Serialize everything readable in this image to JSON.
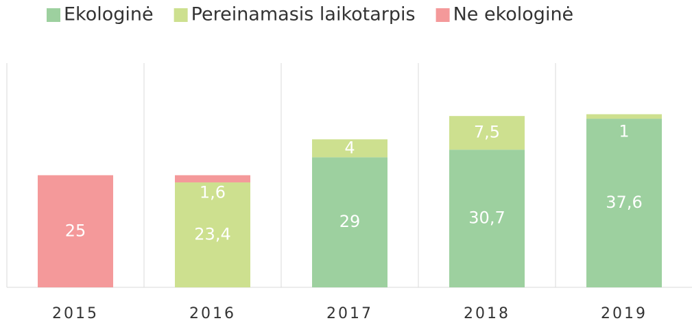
{
  "chart_data": {
    "type": "stacked_bar",
    "categories": [
      "2015",
      "2016",
      "2017",
      "2018",
      "2019"
    ],
    "series": [
      {
        "name": "Ekologinė",
        "color": "#9dd09f",
        "values": [
          null,
          null,
          29,
          30.7,
          37.6
        ],
        "value_labels": [
          null,
          null,
          "29",
          "30,7",
          "37,6"
        ]
      },
      {
        "name": "Pereinamasis laikotarpis",
        "color": "#cde08f",
        "values": [
          null,
          23.4,
          4,
          7.5,
          1
        ],
        "value_labels": [
          null,
          "23,4",
          "4",
          "7,5",
          "1"
        ]
      },
      {
        "name": "Ne ekologinė",
        "color": "#f4999a",
        "values": [
          25,
          1.6,
          null,
          null,
          null
        ],
        "value_labels": [
          "25",
          "1,6",
          null,
          null,
          null
        ]
      }
    ],
    "ylim": [
      0,
      50
    ],
    "legend": "top"
  }
}
